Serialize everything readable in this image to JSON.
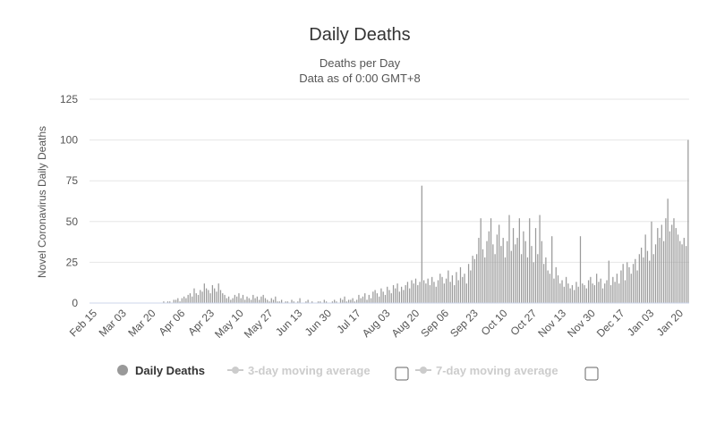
{
  "chart_data": {
    "type": "bar",
    "title": "Daily Deaths",
    "subtitle_lines": [
      "Deaths per Day",
      "Data as of 0:00 GMT+8"
    ],
    "ylabel": "Novel Coronavirus Daily Deaths",
    "xlabel": "",
    "ylim": [
      0,
      125
    ],
    "yticks": [
      0,
      25,
      50,
      75,
      100,
      125
    ],
    "grid": true,
    "x_tick_labels": [
      "Feb 15",
      "Mar 03",
      "Mar 20",
      "Apr 06",
      "Apr 23",
      "May 10",
      "May 27",
      "Jun 13",
      "Jun 30",
      "Jul 17",
      "Aug 03",
      "Aug 20",
      "Sep 06",
      "Sep 23",
      "Oct 10",
      "Oct 27",
      "Nov 13",
      "Nov 30",
      "Dec 17",
      "Jan 03",
      "Jan 20"
    ],
    "bar_color": "#9a9a9a",
    "series": [
      {
        "name": "Daily Deaths",
        "values": [
          0,
          0,
          0,
          0,
          0,
          0,
          0,
          0,
          0,
          0,
          0,
          0,
          0,
          0,
          0,
          0,
          0,
          0,
          0,
          0,
          0,
          0,
          0,
          0,
          0,
          0,
          0,
          0,
          0,
          0,
          0,
          0,
          0,
          0,
          0,
          0,
          1,
          0,
          1,
          1,
          0,
          2,
          2,
          3,
          1,
          3,
          4,
          3,
          5,
          6,
          4,
          9,
          6,
          5,
          8,
          7,
          12,
          9,
          8,
          6,
          11,
          9,
          7,
          12,
          8,
          6,
          5,
          3,
          4,
          2,
          3,
          5,
          4,
          6,
          3,
          5,
          2,
          4,
          3,
          2,
          5,
          3,
          4,
          2,
          4,
          5,
          3,
          2,
          1,
          3,
          2,
          4,
          1,
          1,
          2,
          0,
          1,
          1,
          0,
          2,
          1,
          0,
          1,
          3,
          0,
          0,
          1,
          2,
          0,
          1,
          0,
          0,
          1,
          1,
          0,
          2,
          1,
          0,
          0,
          1,
          2,
          1,
          0,
          3,
          2,
          4,
          1,
          2,
          2,
          3,
          1,
          2,
          5,
          3,
          4,
          6,
          2,
          5,
          3,
          7,
          8,
          6,
          4,
          9,
          7,
          5,
          10,
          8,
          6,
          11,
          9,
          12,
          7,
          10,
          8,
          11,
          13,
          9,
          14,
          12,
          15,
          11,
          13,
          72,
          14,
          12,
          15,
          11,
          16,
          13,
          10,
          14,
          18,
          16,
          12,
          15,
          20,
          13,
          17,
          11,
          19,
          14,
          22,
          16,
          18,
          12,
          24,
          20,
          29,
          27,
          30,
          40,
          52,
          33,
          28,
          38,
          44,
          52,
          36,
          30,
          42,
          48,
          35,
          40,
          28,
          38,
          54,
          32,
          46,
          36,
          40,
          52,
          30,
          44,
          38,
          28,
          52,
          35,
          25,
          46,
          30,
          54,
          38,
          24,
          28,
          20,
          18,
          41,
          15,
          22,
          17,
          12,
          14,
          10,
          16,
          12,
          9,
          11,
          8,
          13,
          10,
          41,
          12,
          11,
          9,
          14,
          16,
          12,
          11,
          18,
          13,
          15,
          9,
          12,
          14,
          26,
          11,
          16,
          13,
          18,
          12,
          20,
          24,
          14,
          25,
          22,
          18,
          24,
          27,
          20,
          30,
          34,
          28,
          42,
          32,
          26,
          50,
          30,
          36,
          46,
          40,
          48,
          38,
          52,
          64,
          44,
          48,
          52,
          46,
          42,
          38,
          36,
          40,
          35,
          100
        ]
      }
    ]
  },
  "legend": [
    {
      "label": "Daily Deaths",
      "active": true,
      "color": "#999999"
    },
    {
      "label": "3-day moving average",
      "active": false,
      "color": "#cccccc",
      "checkbox": true
    },
    {
      "label": "7-day moving average",
      "active": false,
      "color": "#cccccc",
      "checkbox": true
    }
  ]
}
